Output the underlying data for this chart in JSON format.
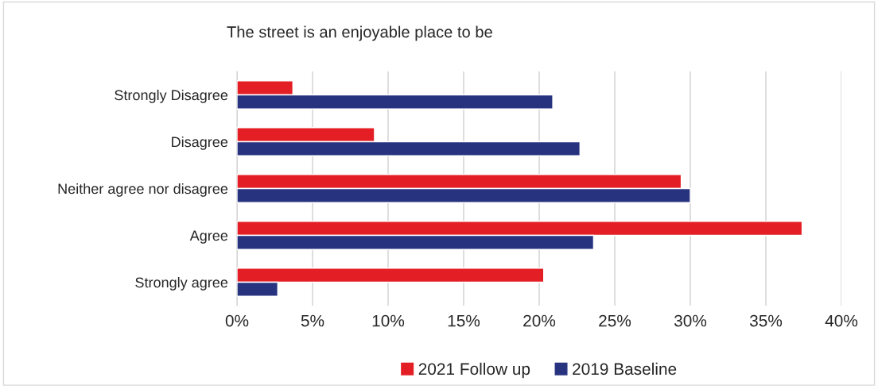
{
  "chart_data": {
    "type": "bar",
    "orientation": "horizontal",
    "title": "The street is an enjoyable place to be",
    "categories": [
      "Strongly Disagree",
      "Disagree",
      "Neither agree nor disagree",
      "Agree",
      "Strongly agree"
    ],
    "series": [
      {
        "name": "2021 Follow up",
        "color": "#e31e24",
        "values": [
          3.7,
          9.1,
          29.4,
          37.4,
          20.3
        ]
      },
      {
        "name": "2019 Baseline",
        "color": "#283380",
        "values": [
          20.9,
          22.7,
          30.0,
          23.6,
          2.7
        ]
      }
    ],
    "xlim": [
      0,
      40
    ],
    "xticks": [
      {
        "value": 0,
        "label": "0%"
      },
      {
        "value": 5,
        "label": "5%"
      },
      {
        "value": 10,
        "label": "10%"
      },
      {
        "value": 15,
        "label": "15%"
      },
      {
        "value": 20,
        "label": "20%"
      },
      {
        "value": 25,
        "label": "25%"
      },
      {
        "value": 30,
        "label": "30%"
      },
      {
        "value": 35,
        "label": "35%"
      },
      {
        "value": 40,
        "label": "40%"
      }
    ],
    "grid": "x",
    "legend": "bottom"
  }
}
